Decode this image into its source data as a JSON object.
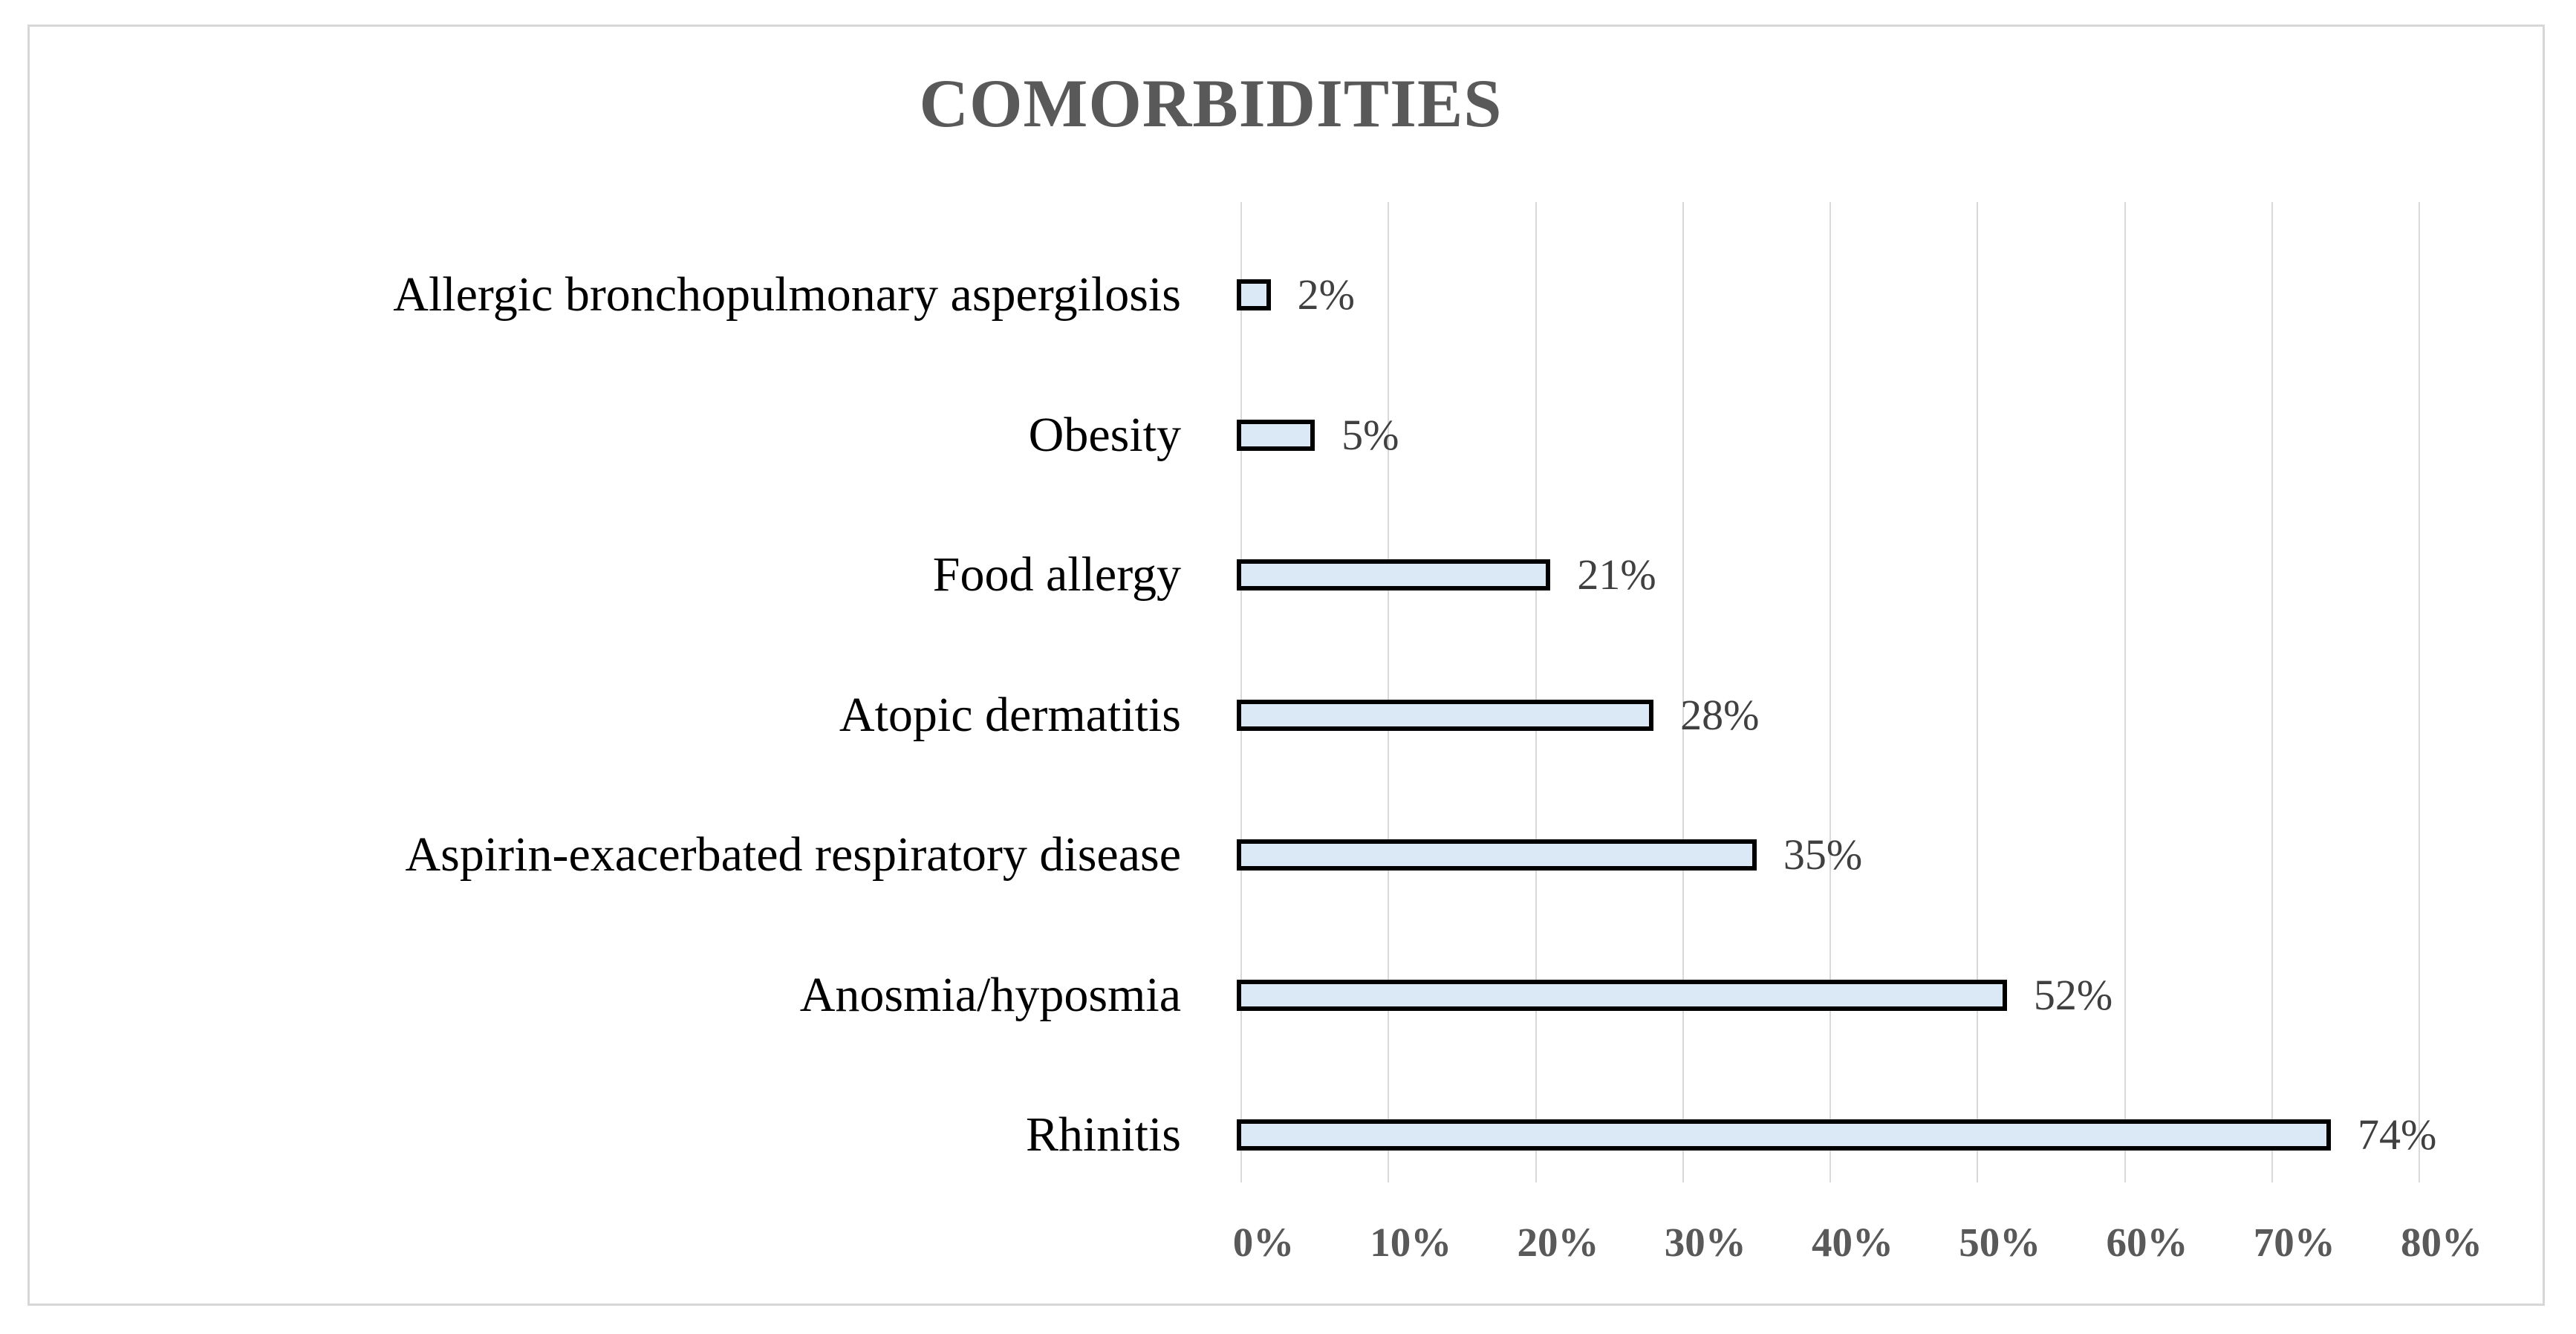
{
  "chart_data": {
    "type": "bar",
    "orientation": "horizontal",
    "title": "COMORBIDITIES",
    "categories": [
      "Allergic bronchopulmonary aspergilosis",
      "Obesity",
      "Food allergy",
      "Atopic dermatitis",
      "Aspirin-exacerbated respiratory disease",
      "Anosmia/hyposmia",
      "Rhinitis"
    ],
    "values": [
      2,
      5,
      21,
      28,
      35,
      52,
      74
    ],
    "data_labels": [
      "2%",
      "5%",
      "21%",
      "28%",
      "35%",
      "52%",
      "74%"
    ],
    "x_tick_labels": [
      "0%",
      "10%",
      "20%",
      "30%",
      "40%",
      "50%",
      "60%",
      "70%",
      "80%"
    ],
    "xlim": [
      0,
      80
    ],
    "x_tick_step": 10,
    "grid": "vertical",
    "legend_position": "none",
    "colors": {
      "bar_fill": "#dbe8f5",
      "bar_border": "#000000",
      "gridline": "#d9d9d9",
      "title_text": "#595959",
      "category_text": "#000000",
      "data_label_text": "#404040",
      "tick_text": "#595959",
      "frame_border": "#d7d7d7",
      "background": "#ffffff"
    }
  }
}
